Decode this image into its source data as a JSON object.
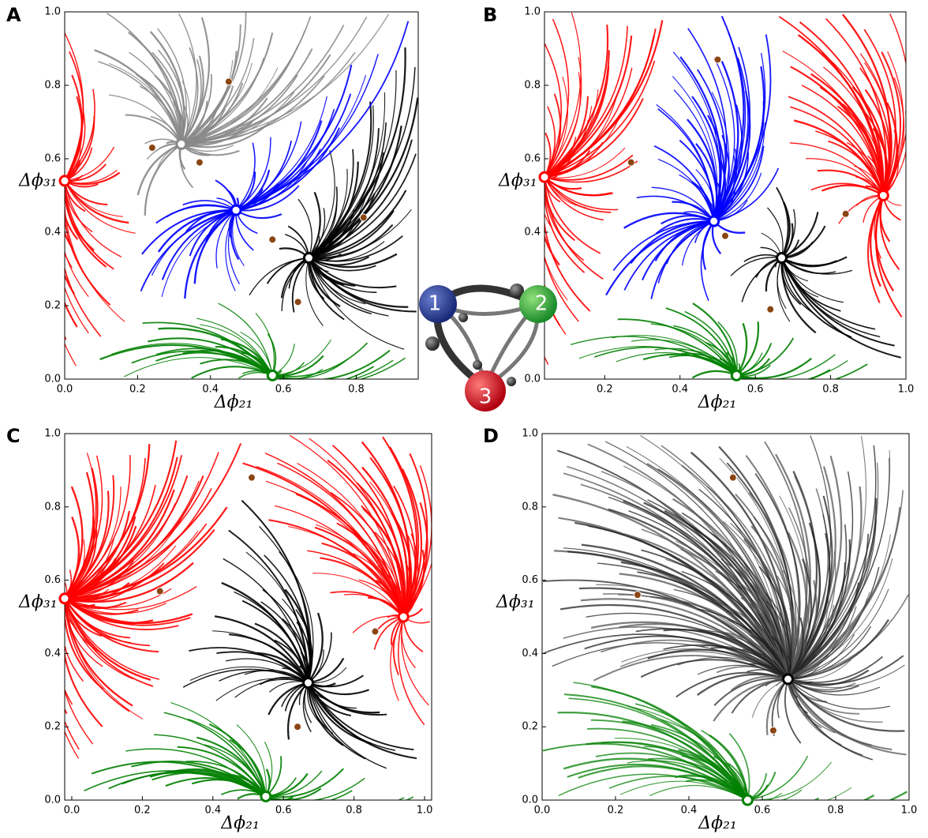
{
  "chart_data": [
    {
      "type": "phase",
      "panel_label": "A",
      "xlabel": "Δϕ₂₁",
      "ylabel": "Δϕ₃₁",
      "xlim": [
        0,
        0.97
      ],
      "ylim": [
        0,
        1
      ],
      "xticks": [
        {
          "value": 0,
          "label": "0.0"
        },
        {
          "value": 0.2,
          "label": "0.2"
        },
        {
          "value": 0.4,
          "label": "0.4"
        },
        {
          "value": 0.6,
          "label": "0.6"
        },
        {
          "value": 0.8,
          "label": "0.8"
        }
      ],
      "yticks": [
        {
          "value": 0,
          "label": "0.0"
        },
        {
          "value": 0.2,
          "label": "0.2"
        },
        {
          "value": 0.4,
          "label": "0.4"
        },
        {
          "value": 0.6,
          "label": "0.6"
        },
        {
          "value": 0.8,
          "label": "0.8"
        },
        {
          "value": 1,
          "label": "1.0"
        }
      ],
      "stable_points": {
        "x": [
          0.32,
          0.47,
          0.67,
          0.0,
          0.57
        ],
        "y": [
          0.64,
          0.46,
          0.33,
          0.54,
          0.01
        ],
        "colors": [
          "#888888",
          "#0000ff",
          "#000000",
          "#ff0000",
          "#008000"
        ]
      },
      "saddle_points": {
        "x": [
          0.45,
          0.24,
          0.37,
          0.57,
          0.82,
          0.64
        ],
        "y": [
          0.81,
          0.63,
          0.59,
          0.38,
          0.44,
          0.21
        ],
        "color": "#8b4513"
      }
    },
    {
      "type": "phase",
      "panel_label": "B",
      "xlabel": "Δϕ₂₁",
      "ylabel": "Δϕ₃₁",
      "xlim": [
        0.04,
        1
      ],
      "ylim": [
        0,
        1
      ],
      "xticks": [
        {
          "value": 0.2,
          "label": "0.2"
        },
        {
          "value": 0.4,
          "label": "0.4"
        },
        {
          "value": 0.6,
          "label": "0.6"
        },
        {
          "value": 0.8,
          "label": "0.8"
        },
        {
          "value": 1,
          "label": "1.0"
        }
      ],
      "yticks": [
        {
          "value": 0,
          "label": "0.0"
        },
        {
          "value": 0.2,
          "label": "0.2"
        },
        {
          "value": 0.4,
          "label": "0.4"
        },
        {
          "value": 0.6,
          "label": "0.6"
        },
        {
          "value": 0.8,
          "label": "0.8"
        },
        {
          "value": 1,
          "label": "1.0"
        }
      ],
      "stable_points": {
        "x": [
          0.49,
          0.67,
          0.94,
          0.55,
          0.04
        ],
        "y": [
          0.43,
          0.33,
          0.5,
          0.01,
          0.55
        ],
        "colors": [
          "#0000ff",
          "#000000",
          "#ff0000",
          "#008000",
          "#ff0000"
        ]
      },
      "saddle_points": {
        "x": [
          0.5,
          0.27,
          0.52,
          0.84,
          0.64
        ],
        "y": [
          0.87,
          0.59,
          0.39,
          0.45,
          0.19
        ],
        "color": "#8b4513"
      }
    },
    {
      "type": "phase",
      "panel_label": "C",
      "xlabel": "Δϕ₂₁",
      "ylabel": "Δϕ₃₁",
      "xlim": [
        -0.02,
        1.02
      ],
      "ylim": [
        0,
        1
      ],
      "xticks": [
        {
          "value": 0,
          "label": "0.0"
        },
        {
          "value": 0.2,
          "label": "0.2"
        },
        {
          "value": 0.4,
          "label": "0.4"
        },
        {
          "value": 0.6,
          "label": "0.6"
        },
        {
          "value": 0.8,
          "label": "0.8"
        },
        {
          "value": 1,
          "label": "1.0"
        }
      ],
      "yticks": [
        {
          "value": 0,
          "label": "0.0"
        },
        {
          "value": 0.2,
          "label": "0.2"
        },
        {
          "value": 0.4,
          "label": "0.4"
        },
        {
          "value": 0.6,
          "label": "0.6"
        },
        {
          "value": 0.8,
          "label": "0.8"
        },
        {
          "value": 1,
          "label": "1.0"
        }
      ],
      "stable_points": {
        "x": [
          0.67,
          0.94,
          0.55,
          -0.02
        ],
        "y": [
          0.32,
          0.5,
          0.01,
          0.55
        ],
        "colors": [
          "#000000",
          "#ff0000",
          "#008000",
          "#ff0000"
        ]
      },
      "saddle_points": {
        "x": [
          0.51,
          0.25,
          0.86,
          0.64
        ],
        "y": [
          0.88,
          0.57,
          0.46,
          0.2
        ],
        "color": "#8b4513"
      }
    },
    {
      "type": "phase",
      "panel_label": "D",
      "xlabel": "Δϕ₂₁",
      "ylabel": "Δϕ₃₁",
      "xlim": [
        0,
        1
      ],
      "ylim": [
        0,
        1
      ],
      "xticks": [
        {
          "value": 0,
          "label": "0.0"
        },
        {
          "value": 0.2,
          "label": "0.2"
        },
        {
          "value": 0.4,
          "label": "0.4"
        },
        {
          "value": 0.6,
          "label": "0.6"
        },
        {
          "value": 0.8,
          "label": "0.8"
        },
        {
          "value": 1,
          "label": "1.0"
        }
      ],
      "yticks": [
        {
          "value": 0,
          "label": "0.0"
        },
        {
          "value": 0.2,
          "label": "0.2"
        },
        {
          "value": 0.4,
          "label": "0.4"
        },
        {
          "value": 0.6,
          "label": "0.6"
        },
        {
          "value": 0.8,
          "label": "0.8"
        },
        {
          "value": 1,
          "label": "1.0"
        }
      ],
      "stable_points": {
        "x": [
          0.67,
          0.56
        ],
        "y": [
          0.33,
          0.0
        ],
        "colors": [
          "#000000",
          "#008000"
        ]
      },
      "saddle_points": {
        "x": [
          0.52,
          0.26,
          0.63
        ],
        "y": [
          0.88,
          0.56,
          0.19
        ],
        "color": "#8b4513"
      }
    }
  ],
  "network": {
    "nodes": [
      "1",
      "2",
      "3"
    ]
  }
}
